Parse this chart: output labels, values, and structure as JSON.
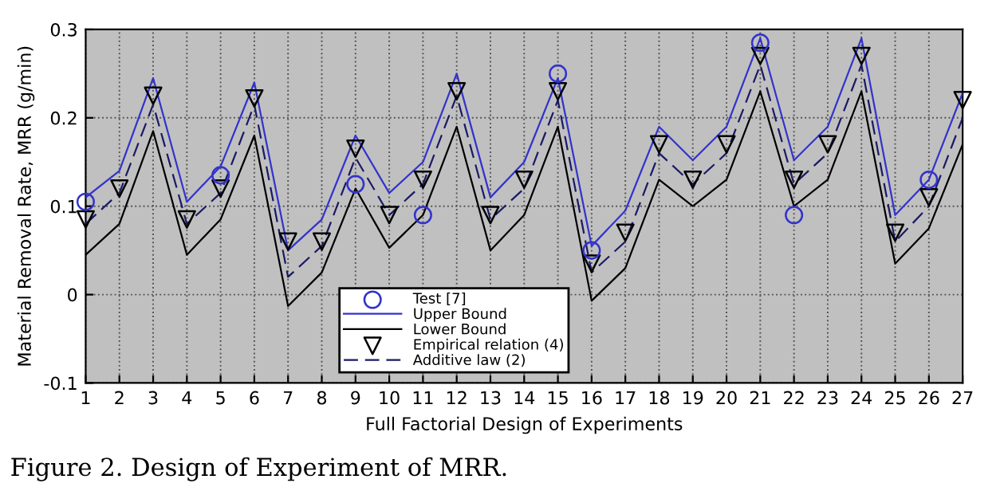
{
  "chart_data": {
    "type": "line",
    "xlabel": "Full Factorial Design of Experiments",
    "ylabel": "Material Removal Rate, MRR (g/min)",
    "x": [
      1,
      2,
      3,
      4,
      5,
      6,
      7,
      8,
      9,
      10,
      11,
      12,
      13,
      14,
      15,
      16,
      17,
      18,
      19,
      20,
      21,
      22,
      23,
      24,
      25,
      26,
      27
    ],
    "xlim": [
      1,
      27
    ],
    "xticks": [
      1,
      2,
      3,
      4,
      5,
      6,
      7,
      8,
      9,
      10,
      11,
      12,
      13,
      14,
      15,
      16,
      17,
      18,
      19,
      20,
      21,
      22,
      23,
      24,
      25,
      26,
      27
    ],
    "ylim": [
      -0.1,
      0.3
    ],
    "yticks": [
      -0.1,
      0,
      0.1,
      0.2,
      0.3
    ],
    "grid": true,
    "legend": "bottom",
    "series": [
      {
        "name": "Test [7]",
        "type": "scatter",
        "marker": "circle",
        "color": "#3333cc",
        "values": [
          0.105,
          null,
          null,
          null,
          0.135,
          null,
          null,
          null,
          0.125,
          null,
          0.09,
          null,
          null,
          null,
          0.25,
          0.05,
          null,
          null,
          null,
          null,
          0.285,
          0.09,
          null,
          null,
          null,
          0.13,
          null
        ]
      },
      {
        "name": "Upper Bound",
        "line_style": "solid",
        "color": "#3333cc",
        "values": [
          0.11,
          0.14,
          0.245,
          0.105,
          0.145,
          0.24,
          0.05,
          0.085,
          0.18,
          0.115,
          0.15,
          0.25,
          0.11,
          0.15,
          0.245,
          0.055,
          0.095,
          0.19,
          0.152,
          0.19,
          0.29,
          0.152,
          0.19,
          0.29,
          0.09,
          0.13,
          0.228
        ]
      },
      {
        "name": "Lower Bound",
        "line_style": "solid",
        "color": "#000000",
        "values": [
          0.045,
          0.08,
          0.185,
          0.045,
          0.085,
          0.18,
          -0.013,
          0.025,
          0.12,
          0.053,
          0.09,
          0.19,
          0.05,
          0.09,
          0.19,
          -0.007,
          0.03,
          0.13,
          0.1,
          0.13,
          0.23,
          0.1,
          0.13,
          0.23,
          0.035,
          0.075,
          0.17
        ]
      },
      {
        "name": "Empirical relation (4)",
        "type": "scatter",
        "marker": "triangle",
        "color": "#000000",
        "values": [
          0.085,
          0.12,
          0.225,
          0.085,
          0.12,
          0.222,
          0.06,
          0.06,
          0.165,
          0.09,
          0.13,
          0.23,
          0.09,
          0.13,
          0.23,
          0.035,
          0.07,
          0.17,
          0.13,
          0.17,
          0.27,
          0.13,
          0.17,
          0.27,
          0.07,
          0.11,
          0.22
        ]
      },
      {
        "name": "Additive law (2)",
        "line_style": "dashed",
        "color": "#1a1a66",
        "values": [
          0.08,
          0.115,
          0.215,
          0.08,
          0.115,
          0.215,
          0.02,
          0.055,
          0.155,
          0.09,
          0.125,
          0.225,
          0.085,
          0.12,
          0.22,
          0.025,
          0.06,
          0.16,
          0.125,
          0.16,
          0.26,
          0.125,
          0.16,
          0.26,
          0.06,
          0.1,
          0.2
        ]
      }
    ],
    "annotations": [
      "Figure 2. Design of Experiment of MRR."
    ]
  }
}
